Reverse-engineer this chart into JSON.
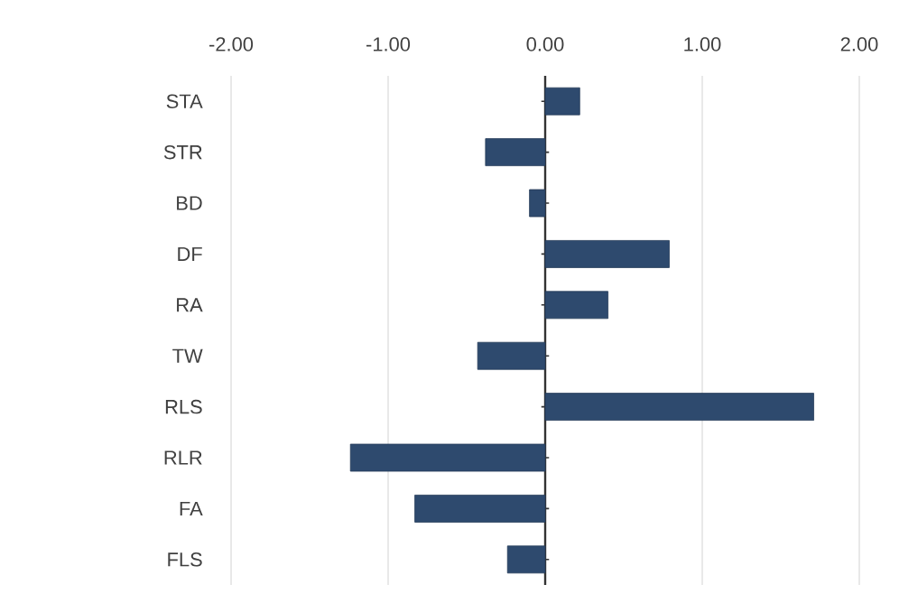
{
  "chart_data": {
    "type": "bar",
    "orientation": "horizontal",
    "categories": [
      "STA",
      "STR",
      "BD",
      "DF",
      "RA",
      "TW",
      "RLS",
      "RLR",
      "FA",
      "FLS"
    ],
    "values": [
      0.22,
      -0.38,
      -0.1,
      0.79,
      0.4,
      -0.43,
      1.71,
      -1.24,
      -0.83,
      -0.24
    ],
    "color": "#2e4a6e",
    "xlim": [
      -2,
      2
    ],
    "xticks": [
      {
        "value": -2,
        "label": "-2.00"
      },
      {
        "value": -1,
        "label": "-1.00"
      },
      {
        "value": 0,
        "label": "0.00"
      },
      {
        "value": 1,
        "label": "1.00"
      },
      {
        "value": 2,
        "label": "2.00"
      }
    ],
    "grid": "x"
  }
}
